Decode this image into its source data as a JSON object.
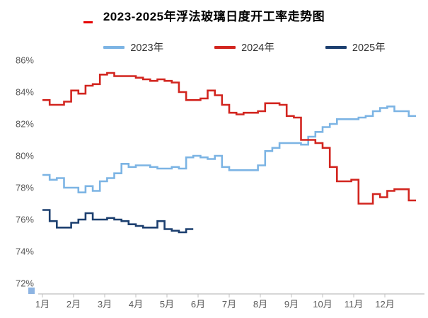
{
  "header": {
    "accent_color": "#e60000"
  },
  "chart_data": {
    "type": "line",
    "title": "2023-2025年浮法玻璃日度开工率走势图",
    "x_unit": "week-of-year",
    "xlabel": "",
    "ylabel": "",
    "ylim": [
      72,
      86
    ],
    "grid": false,
    "legend_position": "top-center",
    "axis_color": "#bfbfbf",
    "tick_color": "#595959",
    "x_ticks": [
      "1月",
      "2月",
      "3月",
      "4月",
      "5月",
      "6月",
      "7月",
      "8月",
      "9月",
      "10月",
      "11月",
      "12月"
    ],
    "y_ticks": [
      {
        "value": 86,
        "label": "86%"
      },
      {
        "value": 84,
        "label": "84%"
      },
      {
        "value": 82,
        "label": "82%"
      },
      {
        "value": 80,
        "label": "80%"
      },
      {
        "value": 78,
        "label": "78%"
      },
      {
        "value": 76,
        "label": "76%"
      },
      {
        "value": 74,
        "label": "74%"
      },
      {
        "value": 72,
        "label": "72%"
      }
    ],
    "series": [
      {
        "name": "2023年",
        "color": "#7cb4e4",
        "values": [
          78.8,
          78.5,
          78.6,
          78.0,
          78.0,
          77.7,
          78.1,
          77.8,
          78.4,
          78.6,
          78.9,
          79.5,
          79.3,
          79.4,
          79.4,
          79.3,
          79.2,
          79.2,
          79.3,
          79.2,
          79.9,
          80.0,
          79.9,
          79.8,
          80.0,
          79.3,
          79.1,
          79.1,
          79.1,
          79.1,
          79.4,
          80.3,
          80.5,
          80.8,
          80.8,
          80.8,
          80.7,
          81.2,
          81.5,
          81.8,
          82.0,
          82.3,
          82.3,
          82.3,
          82.4,
          82.5,
          82.8,
          83.0,
          83.1,
          82.8,
          82.8,
          82.5
        ]
      },
      {
        "name": "2024年",
        "color": "#d2251f",
        "values": [
          83.5,
          83.2,
          83.2,
          83.4,
          84.1,
          83.9,
          84.4,
          84.5,
          85.1,
          85.2,
          85.0,
          85.0,
          85.0,
          84.9,
          84.8,
          84.7,
          84.8,
          84.7,
          84.6,
          84.0,
          83.5,
          83.5,
          83.6,
          84.1,
          83.8,
          83.2,
          82.7,
          82.6,
          82.7,
          82.7,
          82.8,
          83.3,
          83.3,
          83.2,
          82.5,
          82.4,
          81.0,
          81.0,
          80.8,
          80.5,
          79.3,
          78.4,
          78.4,
          78.5,
          77.0,
          77.0,
          77.6,
          77.4,
          77.8,
          77.9,
          77.9,
          77.2
        ]
      },
      {
        "name": "2025年",
        "color": "#1c3f6f",
        "values": [
          76.6,
          75.9,
          75.5,
          75.5,
          75.8,
          76.0,
          76.4,
          76.0,
          76.0,
          76.1,
          76.0,
          75.9,
          75.7,
          75.6,
          75.5,
          75.5,
          75.9,
          75.4,
          75.3,
          75.2,
          75.4
        ]
      }
    ]
  },
  "watermark": {
    "color": "#8db4e2"
  }
}
